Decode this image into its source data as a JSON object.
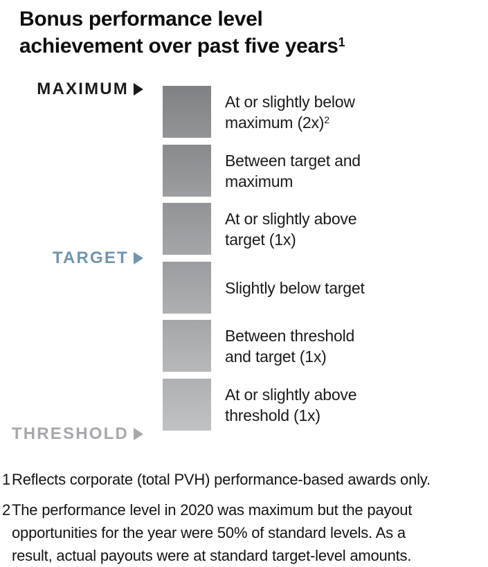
{
  "title": {
    "text": "Bonus performance level\nachievement over past five years",
    "superscript": "1"
  },
  "markers": {
    "maximum": {
      "label": "MAXIMUM",
      "color": "#1a1a1a"
    },
    "target": {
      "label": "TARGET",
      "color": "#7095ae"
    },
    "threshold": {
      "label": "THRESHOLD",
      "color": "#a6a8ab"
    }
  },
  "legend_rows": [
    {
      "line1": "At or slightly below",
      "line2": "maximum (2x)",
      "superscript": "2",
      "swatch_color": "#86888b"
    },
    {
      "line1": "Between target and",
      "line2": "maximum",
      "superscript": "",
      "swatch_color": "#909295"
    },
    {
      "line1": "At or slightly above",
      "line2": "target (1x)",
      "superscript": "",
      "swatch_color": "#9a9c9f"
    },
    {
      "line1": "Slightly below target",
      "line2": "",
      "superscript": "",
      "swatch_color": "#a4a6a9"
    },
    {
      "line1": "Between threshold",
      "line2": "and target (1x)",
      "superscript": "",
      "swatch_color": "#aeb0b2"
    },
    {
      "line1": "At or slightly above",
      "line2": "threshold (1x)",
      "superscript": "",
      "swatch_color": "#b9bbbd"
    }
  ],
  "footnotes": [
    {
      "num": "1",
      "text": "Reflects corporate (total PVH) performance-based awards only."
    },
    {
      "num": "2",
      "text": "The performance level in 2020 was maximum but the payout\nopportunities for the year were 50% of standard levels. As a\nresult, actual payouts were at standard target-level amounts."
    }
  ],
  "chart_data": {
    "type": "table",
    "title": "Bonus performance level achievement over past five years",
    "legend_position": "left",
    "scale_markers": [
      {
        "label": "MAXIMUM",
        "position": "top of scale, aligned with first square",
        "color": "#1a1a1a"
      },
      {
        "label": "TARGET",
        "position": "between third and fourth squares",
        "color": "#7095ae"
      },
      {
        "label": "THRESHOLD",
        "position": "bottom of scale, below sixth square",
        "color": "#a6a8ab"
      }
    ],
    "levels_top_to_bottom": [
      {
        "description": "At or slightly below maximum (2x)",
        "footnote_ref": "2",
        "swatch_color": "#86888b"
      },
      {
        "description": "Between target and maximum",
        "footnote_ref": "",
        "swatch_color": "#909295"
      },
      {
        "description": "At or slightly above target (1x)",
        "footnote_ref": "",
        "swatch_color": "#9a9c9f"
      },
      {
        "description": "Slightly below target",
        "footnote_ref": "",
        "swatch_color": "#a4a6a9"
      },
      {
        "description": "Between threshold and target (1x)",
        "footnote_ref": "",
        "swatch_color": "#aeb0b2"
      },
      {
        "description": "At or slightly above threshold (1x)",
        "footnote_ref": "",
        "swatch_color": "#b9bbbd"
      }
    ]
  }
}
